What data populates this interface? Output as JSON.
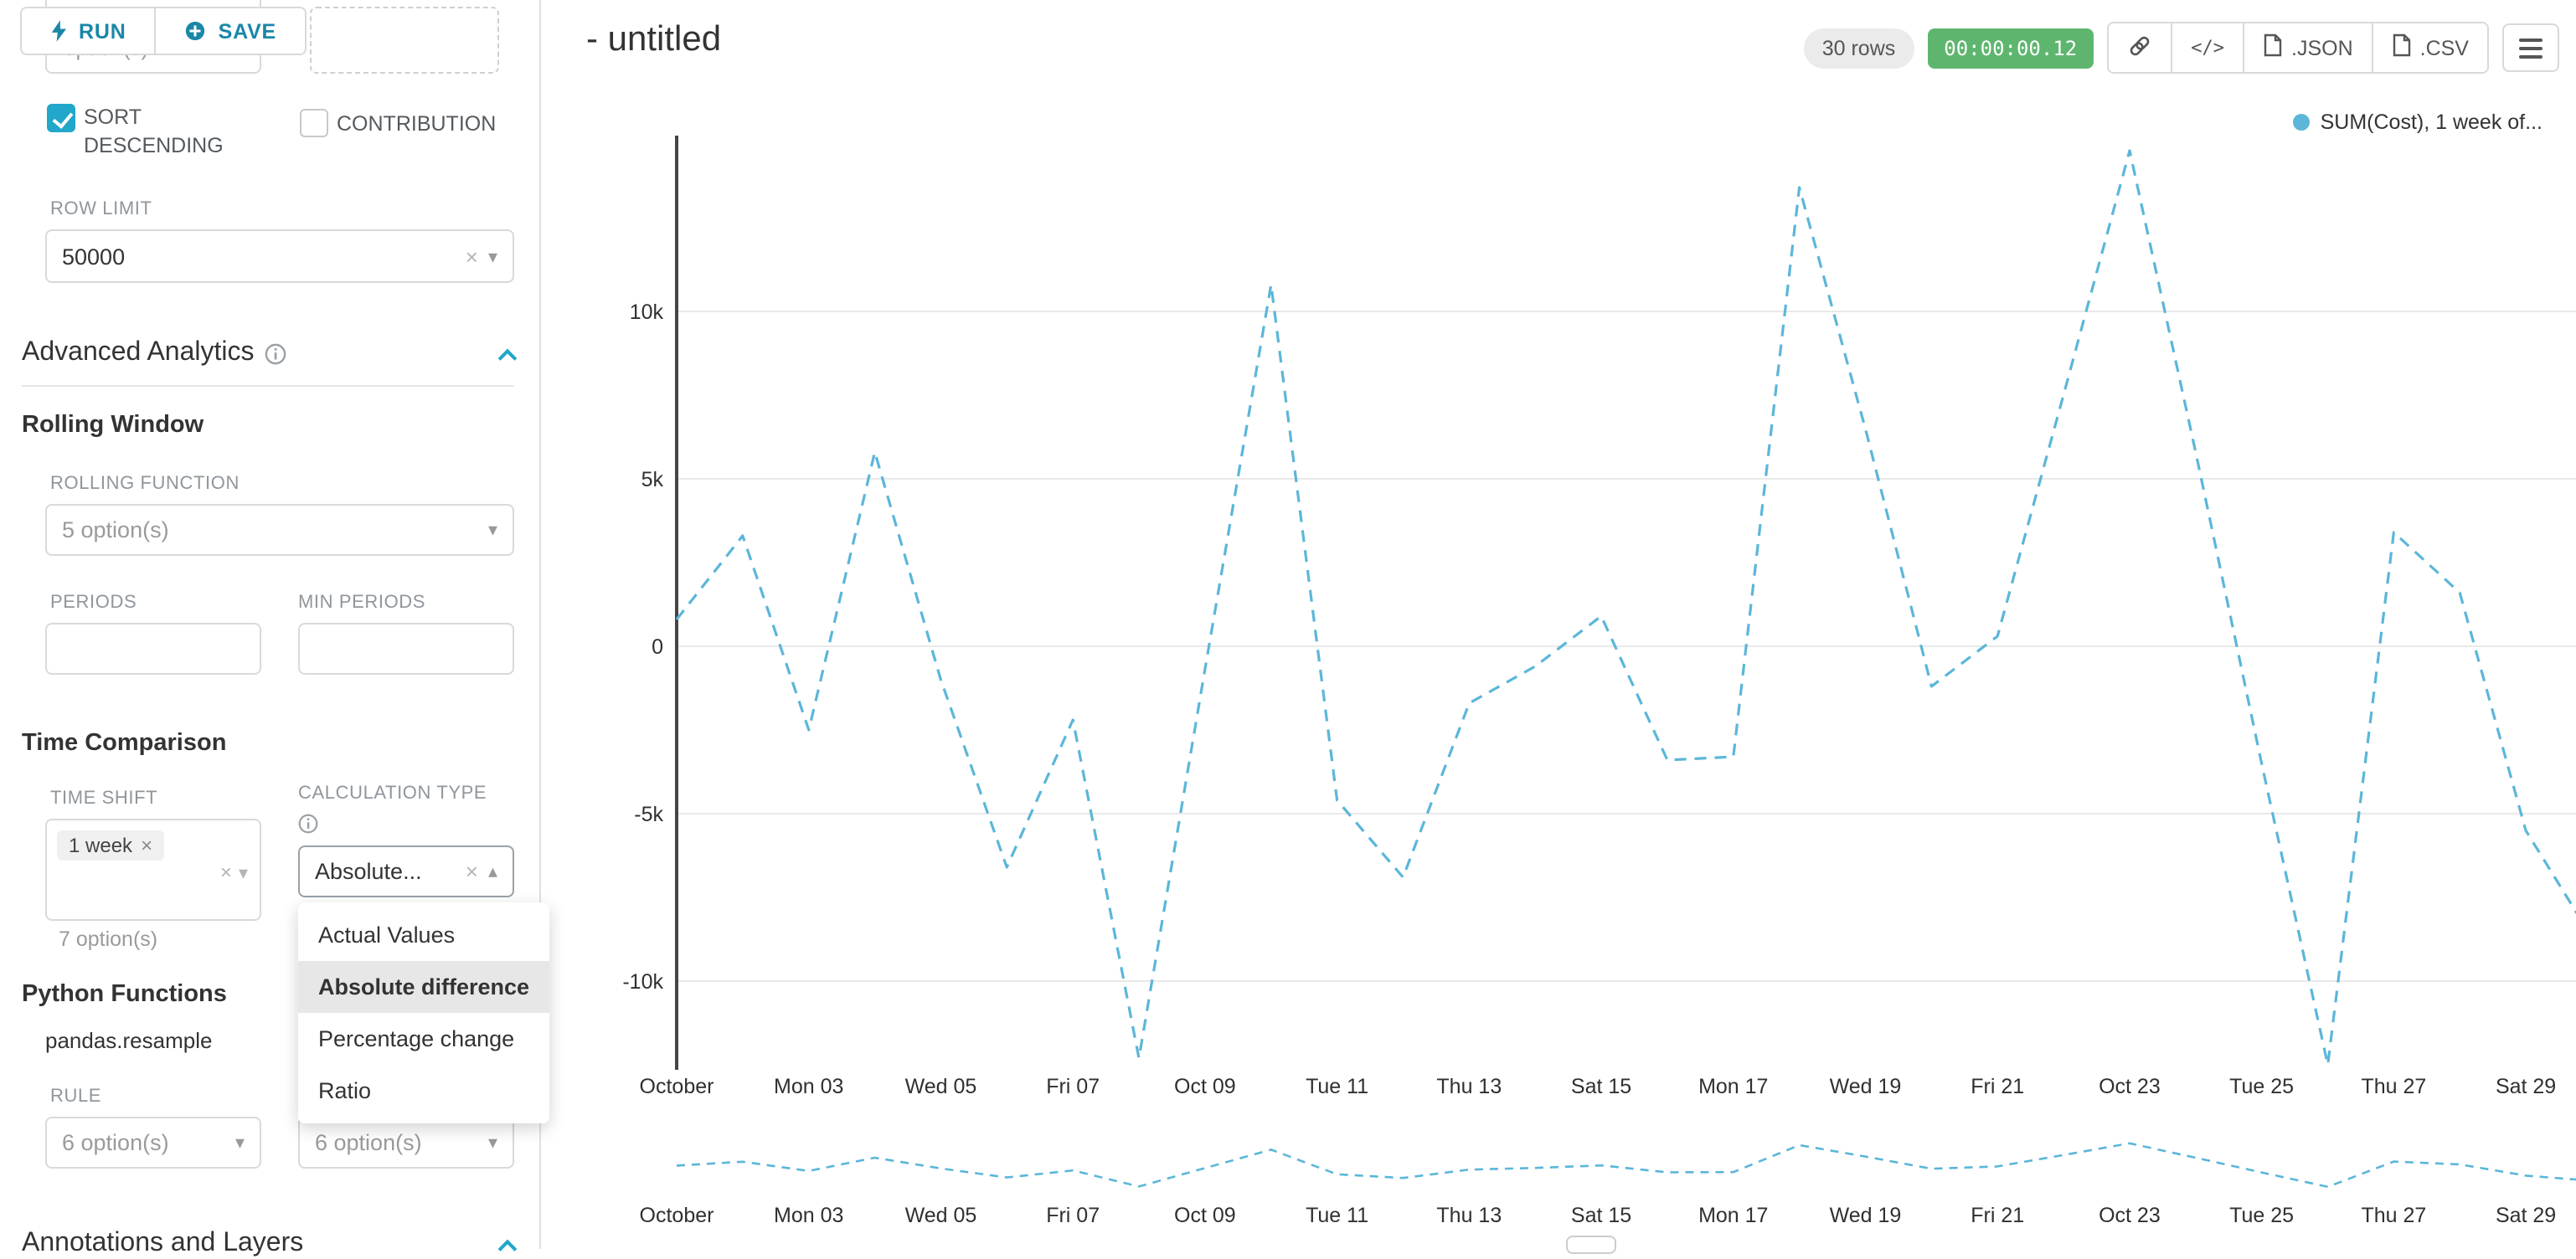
{
  "colors": {
    "accent": "#20a7c9",
    "timer_green": "#5eb66e",
    "line": "#5bb6d9",
    "grid": "#e9e9e9"
  },
  "toolbar": {
    "run": "RUN",
    "save": "SAVE"
  },
  "panel": {
    "top_placeholder": "option(s)",
    "sort_descending_label": "SORT DESCENDING",
    "sort_descending_checked": true,
    "contribution_label": "CONTRIBUTION",
    "contribution_checked": false,
    "row_limit_label": "ROW LIMIT",
    "row_limit_value": "50000",
    "advanced_analytics_title": "Advanced Analytics",
    "rolling_window_title": "Rolling Window",
    "rolling_function_label": "ROLLING FUNCTION",
    "rolling_function_value": "5 option(s)",
    "periods_label": "PERIODS",
    "min_periods_label": "MIN PERIODS",
    "time_comparison_title": "Time Comparison",
    "time_shift_label": "TIME SHIFT",
    "time_shift_tag": "1 week",
    "time_shift_hint": "7 option(s)",
    "calculation_type_label": "CALCULATION TYPE",
    "calculation_type_value": "Absolute...",
    "dropdown_options": [
      "Actual Values",
      "Absolute difference",
      "Percentage change",
      "Ratio"
    ],
    "dropdown_selected": "Absolute difference",
    "python_functions_title": "Python Functions",
    "python_function_name": "pandas.resample",
    "rule_label": "RULE",
    "rule_value_1": "6 option(s)",
    "rule_value_2": "6 option(s)",
    "annotations_title": "Annotations and Layers"
  },
  "header": {
    "title": "- untitled",
    "rows_badge": "30 rows",
    "timer": "00:00:00.12",
    "json_label": ".JSON",
    "csv_label": ".CSV"
  },
  "legend": {
    "label": "SUM(Cost), 1 week of..."
  },
  "chart_data": {
    "type": "line",
    "title": "",
    "line_style": "dashed",
    "grid": true,
    "legend_entries": [
      "SUM(Cost), 1 week of..."
    ],
    "legend_position": "top-right",
    "x_ticks": [
      "October",
      "Mon 03",
      "Wed 05",
      "Fri 07",
      "Oct 09",
      "Tue 11",
      "Thu 13",
      "Sat 15",
      "Mon 17",
      "Wed 19",
      "Fri 21",
      "Oct 23",
      "Tue 25",
      "Thu 27",
      "Sat 29"
    ],
    "x_tick_every_days": 2,
    "y_ticks": [
      10000,
      5000,
      0,
      -5000,
      -10000
    ],
    "y_tick_labels": [
      "10k",
      "5k",
      "0",
      "-5k",
      "-10k"
    ],
    "ylim": [
      -13500,
      15000
    ],
    "series": [
      {
        "name": "SUM(Cost), 1 week offset",
        "color": "#5bb6d9",
        "style": "dashed",
        "values": [
          800,
          3300,
          -2500,
          5800,
          -1000,
          -6600,
          -2200,
          -12300,
          -700,
          10800,
          -4600,
          -6900,
          -1700,
          -600,
          900,
          -3400,
          -3300,
          13700,
          6500,
          -1200,
          300,
          7500,
          14800,
          5800,
          -3500,
          -12500,
          3400,
          1600,
          -5500,
          -8700
        ]
      }
    ],
    "has_mini_range_chart": true
  }
}
